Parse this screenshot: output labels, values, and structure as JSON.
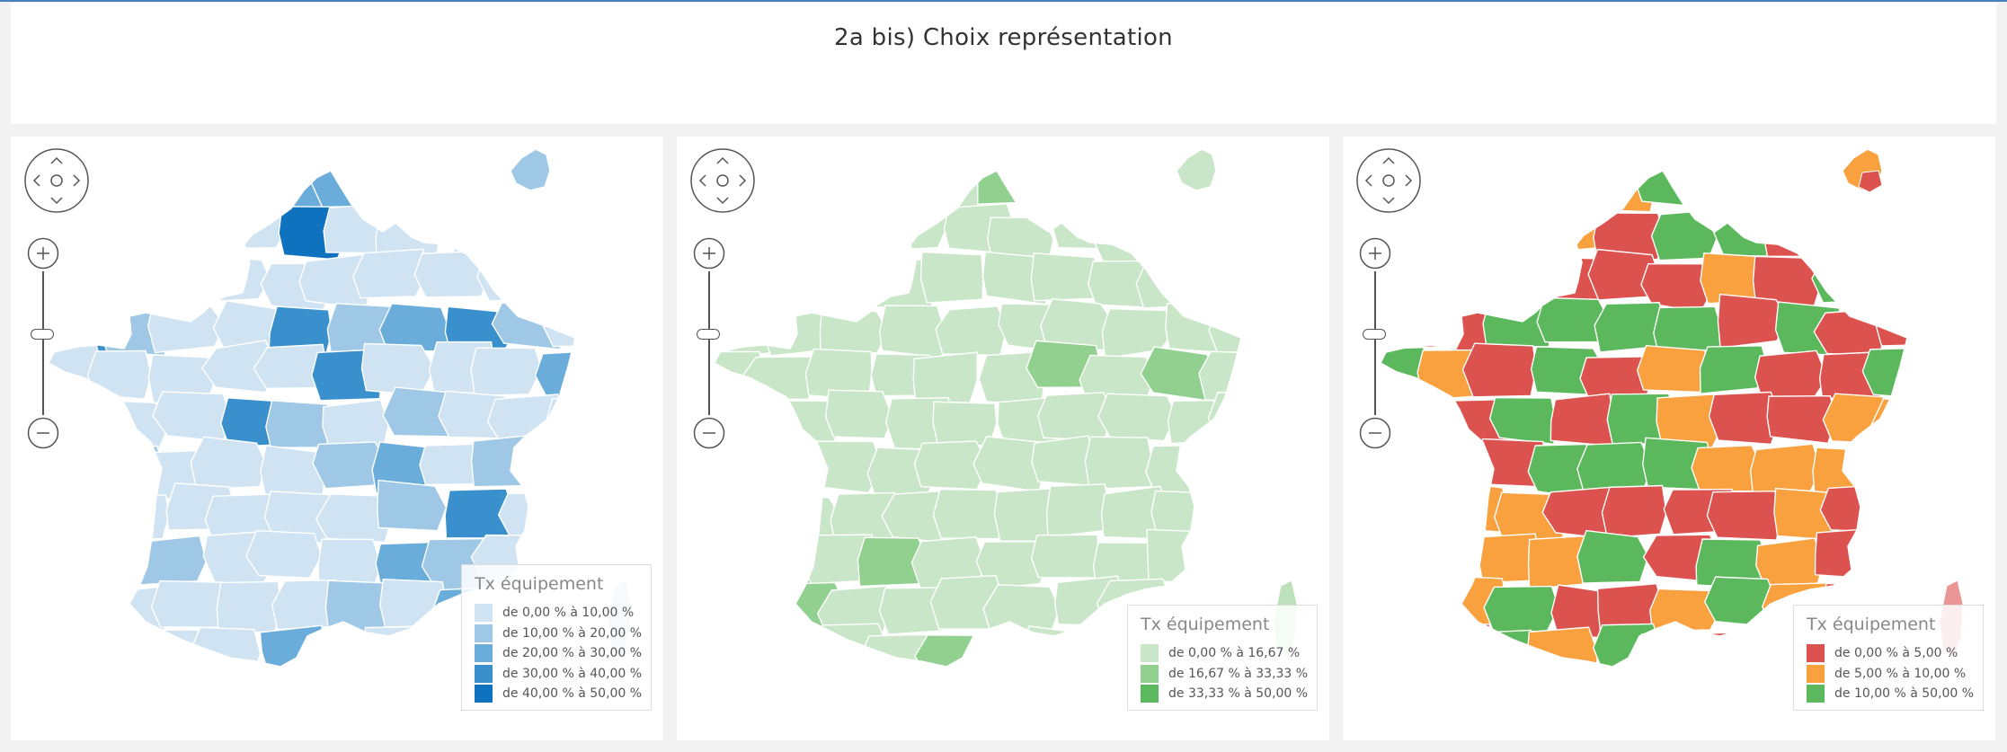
{
  "page": {
    "title": "2a bis) Choix représentation"
  },
  "maps": [
    {
      "legend": {
        "title": "Tx équipement",
        "items": [
          {
            "label": "de 0,00 % à 10,00 %",
            "color": "#cfe3f2"
          },
          {
            "label": "de 10,00 % à 20,00 %",
            "color": "#9ec8e6"
          },
          {
            "label": "de 20,00 % à 30,00 %",
            "color": "#6aacda"
          },
          {
            "label": "de 30,00 % à 40,00 %",
            "color": "#3a90cc"
          },
          {
            "label": "de 40,00 % à 50,00 %",
            "color": "#0e72bf"
          }
        ]
      }
    },
    {
      "legend": {
        "title": "Tx équipement",
        "items": [
          {
            "label": "de 0,00 % à 16,67 %",
            "color": "#c9e7c8"
          },
          {
            "label": "de 16,67 % à 33,33 %",
            "color": "#92d08f"
          },
          {
            "label": "de 33,33 % à 50,00 %",
            "color": "#5cb85c"
          }
        ]
      }
    },
    {
      "legend": {
        "title": "Tx équipement",
        "items": [
          {
            "label": "de 0,00 % à 5,00 %",
            "color": "#dc524f"
          },
          {
            "label": "de 5,00 % à 10,00 %",
            "color": "#f9a03f"
          },
          {
            "label": "de 10,00 % à 50,00 %",
            "color": "#5cb85c"
          }
        ]
      }
    }
  ]
}
